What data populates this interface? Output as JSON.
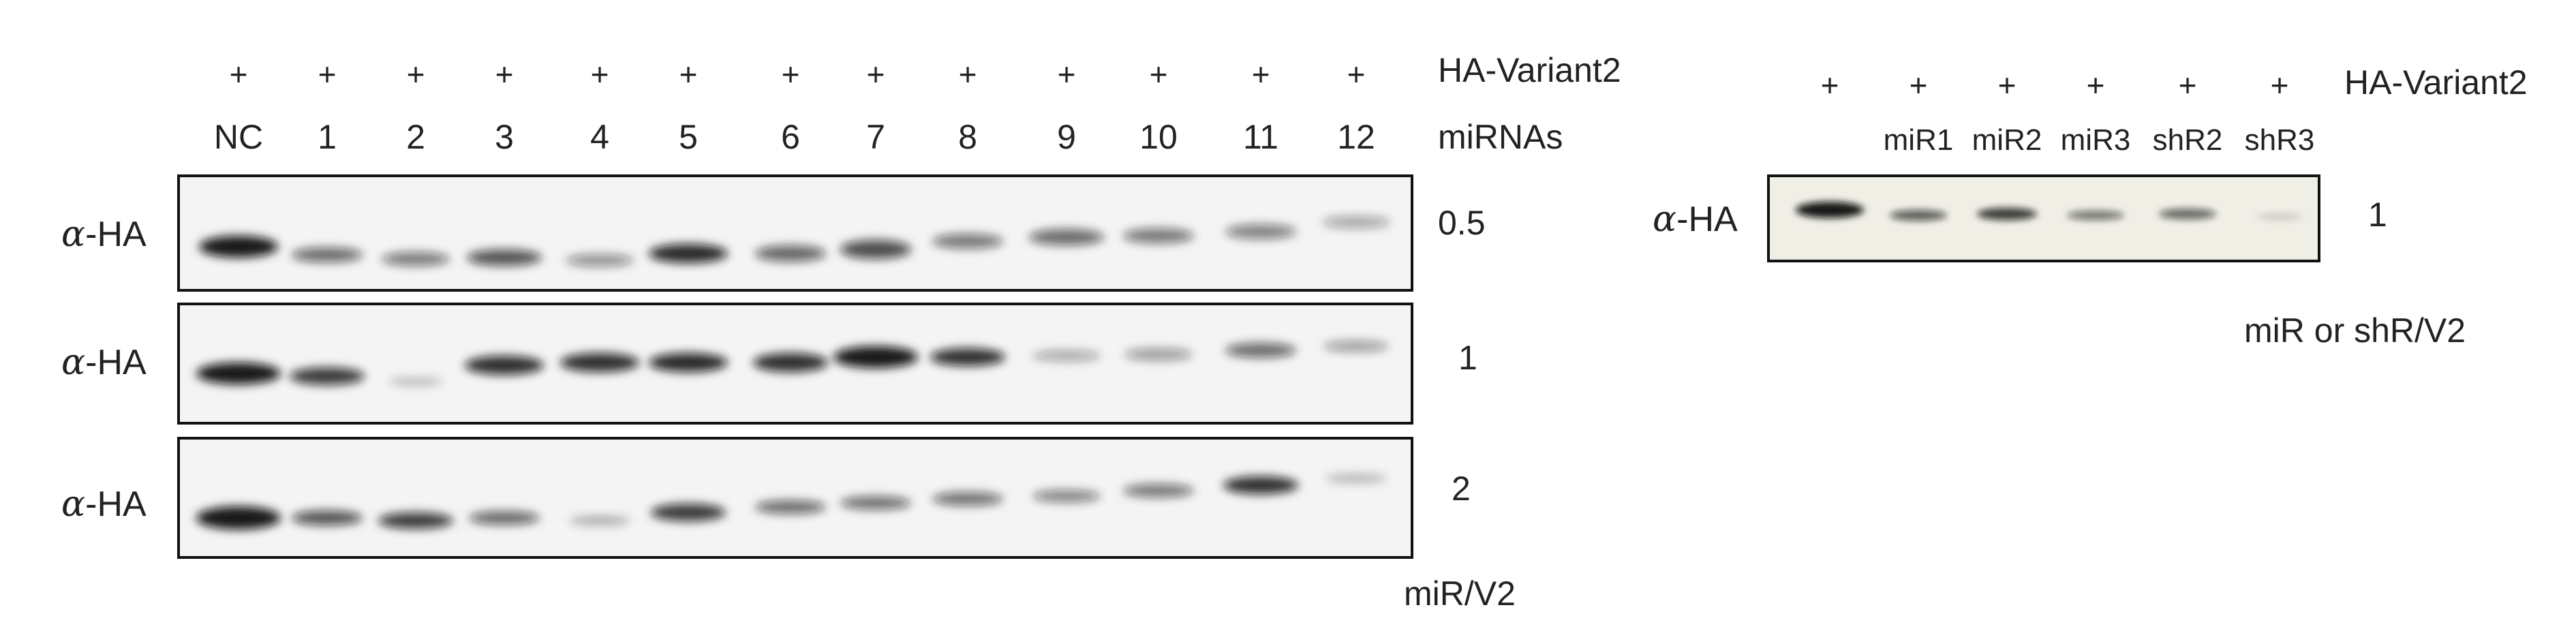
{
  "left_panel": {
    "plus_sign": "+",
    "lanes": [
      "NC",
      "1",
      "2",
      "3",
      "4",
      "5",
      "6",
      "7",
      "8",
      "9",
      "10",
      "11",
      "12"
    ],
    "header_row1": "HA-Variant2",
    "header_row2": "miRNAs",
    "blots": [
      {
        "label_alpha": "α",
        "label_rest": "-HA",
        "ratio": "0.5"
      },
      {
        "label_alpha": "α",
        "label_rest": "-HA",
        "ratio": "1"
      },
      {
        "label_alpha": "α",
        "label_rest": "-HA",
        "ratio": "2"
      }
    ],
    "footer": "miR/V2"
  },
  "right_panel": {
    "plus_sign": "+",
    "lanes": [
      "",
      "miR1",
      "miR2",
      "miR3",
      "shR2",
      "shR3"
    ],
    "header_row1": "HA-Variant2",
    "blot": {
      "label_alpha": "α",
      "label_rest": "-HA",
      "ratio": "1"
    },
    "footer": "miR or shR/V2"
  },
  "colors": {
    "blot_bg": "#f4f4f4",
    "right_blot_bg": "#f0efe6",
    "band": "#111111",
    "frame": "#111111"
  }
}
